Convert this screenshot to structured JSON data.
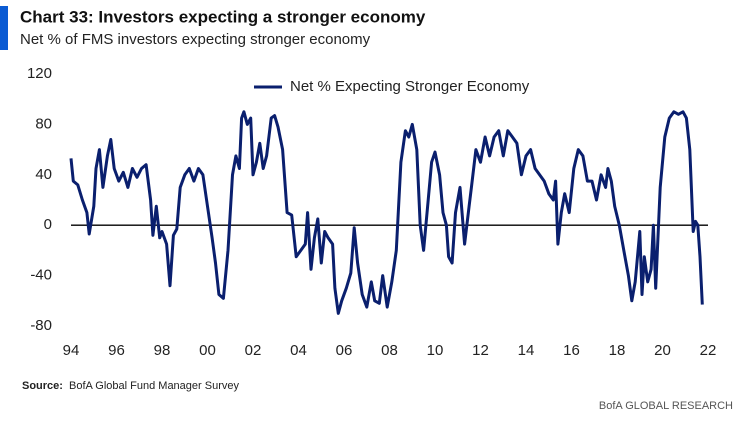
{
  "chart_data": {
    "type": "line",
    "title": "Chart 33: Investors expecting a stronger economy",
    "subtitle": "Net % of FMS investors expecting stronger economy",
    "source_label": "Source:",
    "source": "BofA Global Fund Manager Survey",
    "footer": "BofA GLOBAL RESEARCH",
    "legend": "top",
    "xlim": [
      1994,
      2022
    ],
    "xticks": [
      {
        "value": 1994,
        "label": "94"
      },
      {
        "value": 1996,
        "label": "96"
      },
      {
        "value": 1998,
        "label": "98"
      },
      {
        "value": 2000,
        "label": "00"
      },
      {
        "value": 2002,
        "label": "02"
      },
      {
        "value": 2004,
        "label": "04"
      },
      {
        "value": 2006,
        "label": "06"
      },
      {
        "value": 2008,
        "label": "08"
      },
      {
        "value": 2010,
        "label": "10"
      },
      {
        "value": 2012,
        "label": "12"
      },
      {
        "value": 2014,
        "label": "14"
      },
      {
        "value": 2016,
        "label": "16"
      },
      {
        "value": 2018,
        "label": "18"
      },
      {
        "value": 2020,
        "label": "20"
      },
      {
        "value": 2022,
        "label": "22"
      }
    ],
    "ylim": [
      -80,
      120
    ],
    "yticks": [
      -80,
      -40,
      0,
      40,
      80,
      120
    ],
    "x": [
      1994.0,
      1994.1,
      1994.3,
      1994.5,
      1994.7,
      1994.8,
      1995.0,
      1995.1,
      1995.25,
      1995.4,
      1995.6,
      1995.75,
      1995.9,
      1996.1,
      1996.3,
      1996.5,
      1996.7,
      1996.9,
      1997.1,
      1997.3,
      1997.5,
      1997.6,
      1997.75,
      1997.9,
      1998.0,
      1998.2,
      1998.35,
      1998.5,
      1998.65,
      1998.8,
      1999.0,
      1999.2,
      1999.4,
      1999.6,
      1999.8,
      2000.0,
      2000.2,
      2000.35,
      2000.5,
      2000.7,
      2000.9,
      2001.1,
      2001.25,
      2001.4,
      2001.5,
      2001.6,
      2001.75,
      2001.9,
      2002.0,
      2002.15,
      2002.3,
      2002.45,
      2002.6,
      2002.8,
      2002.95,
      2003.1,
      2003.3,
      2003.5,
      2003.7,
      2003.9,
      2004.1,
      2004.3,
      2004.4,
      2004.55,
      2004.7,
      2004.85,
      2005.0,
      2005.15,
      2005.3,
      2005.5,
      2005.6,
      2005.75,
      2005.9,
      2006.1,
      2006.3,
      2006.45,
      2006.6,
      2006.8,
      2007.0,
      2007.2,
      2007.35,
      2007.55,
      2007.7,
      2007.9,
      2008.1,
      2008.3,
      2008.5,
      2008.7,
      2008.85,
      2009.0,
      2009.2,
      2009.35,
      2009.5,
      2009.7,
      2009.85,
      2010.0,
      2010.2,
      2010.35,
      2010.5,
      2010.6,
      2010.75,
      2010.9,
      2011.1,
      2011.3,
      2011.5,
      2011.6,
      2011.8,
      2012.0,
      2012.2,
      2012.4,
      2012.6,
      2012.8,
      2013.0,
      2013.2,
      2013.4,
      2013.6,
      2013.8,
      2014.0,
      2014.2,
      2014.4,
      2014.6,
      2014.8,
      2015.0,
      2015.2,
      2015.3,
      2015.4,
      2015.55,
      2015.7,
      2015.9,
      2016.1,
      2016.3,
      2016.5,
      2016.7,
      2016.9,
      2017.1,
      2017.3,
      2017.5,
      2017.6,
      2017.75,
      2017.9,
      2018.1,
      2018.3,
      2018.5,
      2018.65,
      2018.8,
      2019.0,
      2019.1,
      2019.2,
      2019.35,
      2019.5,
      2019.6,
      2019.7,
      2019.9,
      2020.1,
      2020.3,
      2020.5,
      2020.7,
      2020.9,
      2021.05,
      2021.2,
      2021.35,
      2021.45,
      2021.55,
      2021.65,
      2021.75
    ],
    "series": [
      {
        "name": "Net % Expecting Stronger Economy",
        "color": "#0a1f6e",
        "values": [
          53,
          35,
          32,
          20,
          10,
          -7,
          15,
          45,
          60,
          30,
          55,
          68,
          45,
          35,
          42,
          30,
          45,
          38,
          45,
          48,
          20,
          -8,
          15,
          -10,
          -5,
          -15,
          -48,
          -8,
          -3,
          30,
          40,
          45,
          35,
          45,
          40,
          15,
          -10,
          -30,
          -55,
          -58,
          -20,
          40,
          55,
          45,
          85,
          90,
          80,
          85,
          40,
          50,
          65,
          45,
          55,
          85,
          87,
          78,
          60,
          10,
          8,
          -25,
          -20,
          -15,
          10,
          -35,
          -10,
          5,
          -30,
          -5,
          -10,
          -15,
          -50,
          -70,
          -60,
          -50,
          -38,
          -2,
          -30,
          -55,
          -65,
          -45,
          -60,
          -62,
          -40,
          -65,
          -45,
          -20,
          50,
          75,
          70,
          80,
          60,
          0,
          -20,
          20,
          50,
          58,
          40,
          10,
          0,
          -25,
          -30,
          10,
          30,
          -15,
          15,
          30,
          60,
          50,
          70,
          55,
          70,
          75,
          55,
          75,
          70,
          65,
          40,
          55,
          60,
          45,
          40,
          35,
          25,
          20,
          35,
          -15,
          10,
          25,
          10,
          45,
          60,
          55,
          35,
          35,
          20,
          40,
          30,
          45,
          35,
          15,
          0,
          -20,
          -40,
          -60,
          -45,
          -5,
          -55,
          -25,
          -45,
          -35,
          0,
          -50,
          30,
          70,
          85,
          90,
          88,
          90,
          85,
          60,
          -5,
          3,
          0,
          -25,
          -63
        ]
      }
    ]
  }
}
